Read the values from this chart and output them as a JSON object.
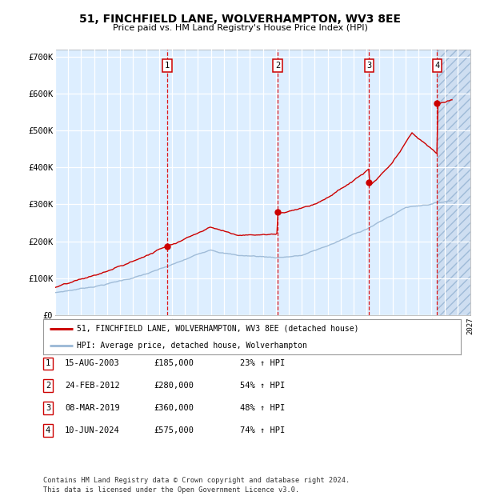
{
  "title": "51, FINCHFIELD LANE, WOLVERHAMPTON, WV3 8EE",
  "subtitle": "Price paid vs. HM Land Registry's House Price Index (HPI)",
  "background_color": "#ddeeff",
  "grid_color": "#ffffff",
  "ylim": [
    0,
    720000
  ],
  "yticks": [
    0,
    100000,
    200000,
    300000,
    400000,
    500000,
    600000,
    700000
  ],
  "ytick_labels": [
    "£0",
    "£100K",
    "£200K",
    "£300K",
    "£400K",
    "£500K",
    "£600K",
    "£700K"
  ],
  "x_start_year": 1995,
  "x_end_year": 2027,
  "purchases": [
    {
      "num": 1,
      "date": "15-AUG-2003",
      "year": 2003.62,
      "price": 185000,
      "hpi_pct": "23%",
      "label": "1"
    },
    {
      "num": 2,
      "date": "24-FEB-2012",
      "year": 2012.14,
      "price": 280000,
      "hpi_pct": "54%",
      "label": "2"
    },
    {
      "num": 3,
      "date": "08-MAR-2019",
      "year": 2019.19,
      "price": 360000,
      "hpi_pct": "48%",
      "label": "3"
    },
    {
      "num": 4,
      "date": "10-JUN-2024",
      "year": 2024.44,
      "price": 575000,
      "hpi_pct": "74%",
      "label": "4"
    }
  ],
  "legend_line1": "51, FINCHFIELD LANE, WOLVERHAMPTON, WV3 8EE (detached house)",
  "legend_line2": "HPI: Average price, detached house, Wolverhampton",
  "footer": "Contains HM Land Registry data © Crown copyright and database right 2024.\nThis data is licensed under the Open Government Licence v3.0.",
  "hpi_line_color": "#a0bcd8",
  "price_line_color": "#cc0000",
  "purchase_marker_color": "#cc0000",
  "table_rows": [
    [
      "1",
      "15-AUG-2003",
      "£185,000",
      "23% ↑ HPI"
    ],
    [
      "2",
      "24-FEB-2012",
      "£280,000",
      "54% ↑ HPI"
    ],
    [
      "3",
      "08-MAR-2019",
      "£360,000",
      "48% ↑ HPI"
    ],
    [
      "4",
      "10-JUN-2024",
      "£575,000",
      "74% ↑ HPI"
    ]
  ]
}
